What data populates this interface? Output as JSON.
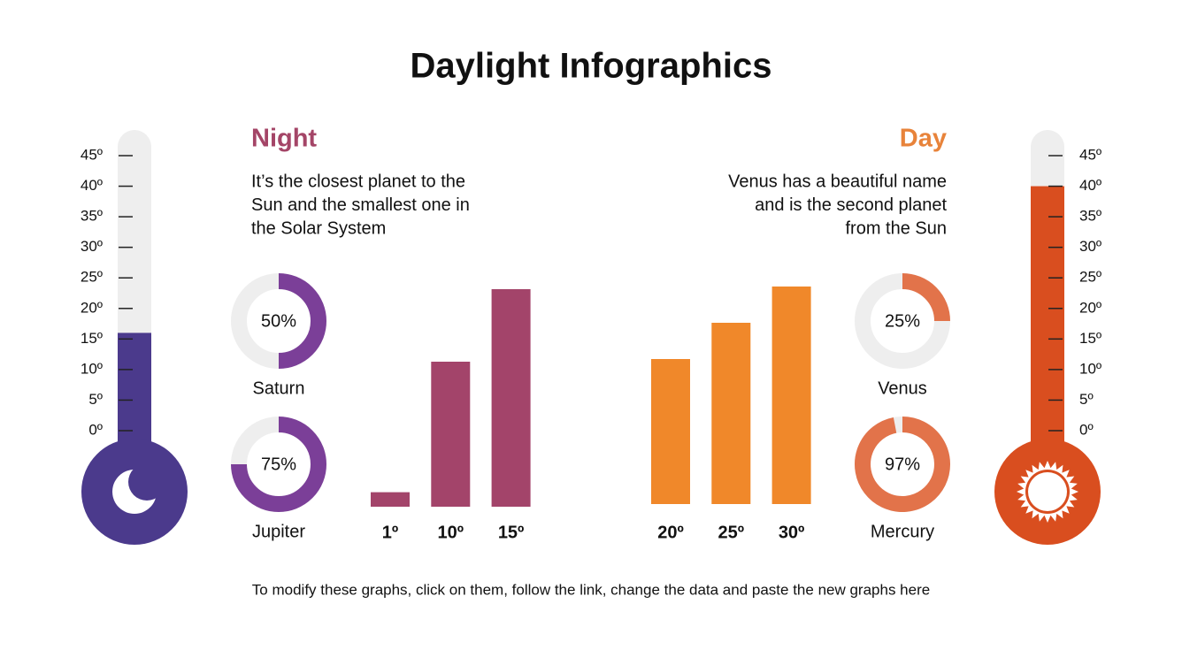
{
  "title": "Daylight Infographics",
  "footer": "To modify these graphs, click on them, follow the link, change the data and paste the new graphs here",
  "panels": [
    {
      "heading": "Night",
      "color": "#a44567",
      "text": [
        "It’s the closest planet to the",
        "Sun and the smallest one in",
        "the Solar System"
      ],
      "thermometer": {
        "color": "#4b3a8c",
        "value": 16,
        "ylim": [
          0,
          45
        ],
        "yticks": [
          {
            "value": 0,
            "label": "0º"
          },
          {
            "value": 5,
            "label": "5º"
          },
          {
            "value": 10,
            "label": "10º"
          },
          {
            "value": 15,
            "label": "15º"
          },
          {
            "value": 20,
            "label": "20º"
          },
          {
            "value": 25,
            "label": "25º"
          },
          {
            "value": 30,
            "label": "30º"
          },
          {
            "value": 35,
            "label": "35º"
          },
          {
            "value": 40,
            "label": "40º"
          },
          {
            "value": 45,
            "label": "45º"
          }
        ]
      },
      "donuts": {
        "color": "#7b3f98",
        "items": [
          {
            "name": "Saturn",
            "value": 50,
            "value_label": "50%"
          },
          {
            "name": "Jupiter",
            "value": 75,
            "value_label": "75%"
          }
        ]
      },
      "bars": {
        "color": "#a3446a",
        "ylim": [
          0,
          15
        ],
        "categories": [
          "1º",
          "10º",
          "15º"
        ],
        "values": [
          1,
          10,
          15
        ]
      }
    },
    {
      "heading": "Day",
      "color": "#e8833a",
      "text": [
        "Venus has a beautiful name",
        "and is the second planet",
        "from the Sun"
      ],
      "thermometer": {
        "color": "#d94e1f",
        "value": 40,
        "ylim": [
          0,
          45
        ],
        "yticks": [
          {
            "value": 0,
            "label": "0º"
          },
          {
            "value": 5,
            "label": "5º"
          },
          {
            "value": 10,
            "label": "10º"
          },
          {
            "value": 15,
            "label": "15º"
          },
          {
            "value": 20,
            "label": "20º"
          },
          {
            "value": 25,
            "label": "25º"
          },
          {
            "value": 30,
            "label": "30º"
          },
          {
            "value": 35,
            "label": "35º"
          },
          {
            "value": 40,
            "label": "40º"
          },
          {
            "value": 45,
            "label": "45º"
          }
        ]
      },
      "donuts": {
        "color": "#e2734a",
        "items": [
          {
            "name": "Venus",
            "value": 25,
            "value_label": "25%"
          },
          {
            "name": "Mercury",
            "value": 97,
            "value_label": "97%"
          }
        ]
      },
      "bars": {
        "color": "#f0882a",
        "ylim": [
          0,
          30
        ],
        "categories": [
          "20º",
          "25º",
          "30º"
        ],
        "values": [
          20,
          25,
          30
        ]
      }
    }
  ]
}
